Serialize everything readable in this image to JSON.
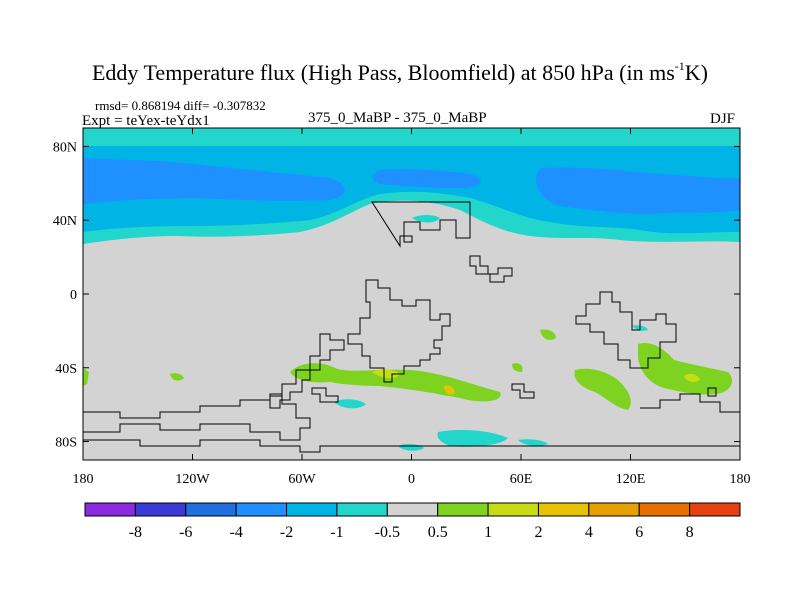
{
  "title": {
    "main": "Eddy Temperature flux (High Pass, Bloomfield) at 850 hPa (in ms",
    "superscript": "-1",
    "unit_tail": "K)"
  },
  "stats": {
    "rmsd_label": "rmsd=",
    "rmsd_value": "0.868194",
    "diff_label": "diff=",
    "diff_value": "-0.307832"
  },
  "expt_label": "Expt = teYex-teYdx1",
  "runs_label": "375_0_MaBP - 375_0_MaBP",
  "season": "DJF",
  "axes": {
    "lat_ticks": [
      {
        "label": "80N",
        "value": 80
      },
      {
        "label": "40N",
        "value": 40
      },
      {
        "label": "0",
        "value": 0
      },
      {
        "label": "40S",
        "value": -40
      },
      {
        "label": "80S",
        "value": -80
      }
    ],
    "lon_ticks": [
      {
        "label": "180",
        "value": -180
      },
      {
        "label": "120W",
        "value": -120
      },
      {
        "label": "60W",
        "value": -60
      },
      {
        "label": "0",
        "value": 0
      },
      {
        "label": "60E",
        "value": 60
      },
      {
        "label": "120E",
        "value": 120
      },
      {
        "label": "180",
        "value": 180
      }
    ]
  },
  "colorbar": {
    "colors": [
      "#8a2be2",
      "#3a3ad8",
      "#1f6fe0",
      "#1e90ff",
      "#00b4e6",
      "#22d6cc",
      "#d3d3d3",
      "#7ed321",
      "#c8dc14",
      "#e6c200",
      "#e6a000",
      "#e86e00",
      "#e64010"
    ],
    "labels": [
      "-8",
      "-6",
      "-4",
      "-2",
      "-1",
      "-0.5",
      "0.5",
      "1",
      "2",
      "4",
      "6",
      "8"
    ]
  },
  "map_colors": {
    "background": "#d3d3d3",
    "band_outer": "#22d6cc",
    "band_mid": "#00b4e6",
    "band_inner": "#1e90ff",
    "positive": "#7ed321",
    "positive_strong": "#c8dc14",
    "positive_peak": "#e6c200",
    "coast": "#000000"
  }
}
